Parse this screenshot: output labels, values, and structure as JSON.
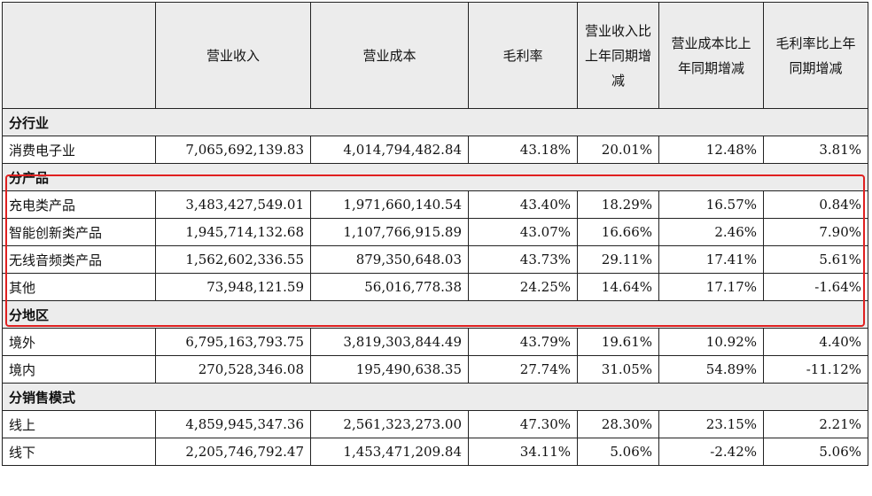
{
  "header": {
    "blank": "",
    "revenue": "营业收入",
    "cost": "营业成本",
    "gross_margin": "毛利率",
    "revenue_yoy": "营业收入比上年同期增减",
    "cost_yoy": "营业成本比上年同期增减",
    "margin_yoy": "毛利率比上年同期增减"
  },
  "sections": [
    {
      "title": "分行业",
      "rows": [
        {
          "name": "消费电子业",
          "revenue": "7,065,692,139.83",
          "cost": "4,014,794,482.84",
          "margin": "43.18%",
          "revenue_yoy": "20.01%",
          "cost_yoy": "12.48%",
          "margin_yoy": "3.81%"
        }
      ]
    },
    {
      "title": "分产品",
      "rows": [
        {
          "name": "充电类产品",
          "revenue": "3,483,427,549.01",
          "cost": "1,971,660,140.54",
          "margin": "43.40%",
          "revenue_yoy": "18.29%",
          "cost_yoy": "16.57%",
          "margin_yoy": "0.84%"
        },
        {
          "name": "智能创新类产品",
          "revenue": "1,945,714,132.68",
          "cost": "1,107,766,915.89",
          "margin": "43.07%",
          "revenue_yoy": "16.66%",
          "cost_yoy": "2.46%",
          "margin_yoy": "7.90%"
        },
        {
          "name": "无线音频类产品",
          "revenue": "1,562,602,336.55",
          "cost": "879,350,648.03",
          "margin": "43.73%",
          "revenue_yoy": "29.11%",
          "cost_yoy": "17.41%",
          "margin_yoy": "5.61%"
        },
        {
          "name": "其他",
          "revenue": "73,948,121.59",
          "cost": "56,016,778.38",
          "margin": "24.25%",
          "revenue_yoy": "14.64%",
          "cost_yoy": "17.17%",
          "margin_yoy": "-1.64%"
        }
      ]
    },
    {
      "title": "分地区",
      "rows": [
        {
          "name": "境外",
          "revenue": "6,795,163,793.75",
          "cost": "3,819,303,844.49",
          "margin": "43.79%",
          "revenue_yoy": "19.61%",
          "cost_yoy": "10.92%",
          "margin_yoy": "4.40%"
        },
        {
          "name": "境内",
          "revenue": "270,528,346.08",
          "cost": "195,490,638.35",
          "margin": "27.74%",
          "revenue_yoy": "31.05%",
          "cost_yoy": "54.89%",
          "margin_yoy": "-11.12%"
        }
      ]
    },
    {
      "title": "分销售模式",
      "rows": [
        {
          "name": "线上",
          "revenue": "4,859,945,347.36",
          "cost": "2,561,323,273.00",
          "margin": "47.30%",
          "revenue_yoy": "28.30%",
          "cost_yoy": "23.15%",
          "margin_yoy": "2.21%"
        },
        {
          "name": "线下",
          "revenue": "2,205,746,792.47",
          "cost": "1,453,471,209.84",
          "margin": "34.11%",
          "revenue_yoy": "5.06%",
          "cost_yoy": "-2.42%",
          "margin_yoy": "5.06%"
        }
      ]
    }
  ],
  "colors": {
    "highlight_border": "#e02020",
    "header_bg": "#ececec"
  }
}
